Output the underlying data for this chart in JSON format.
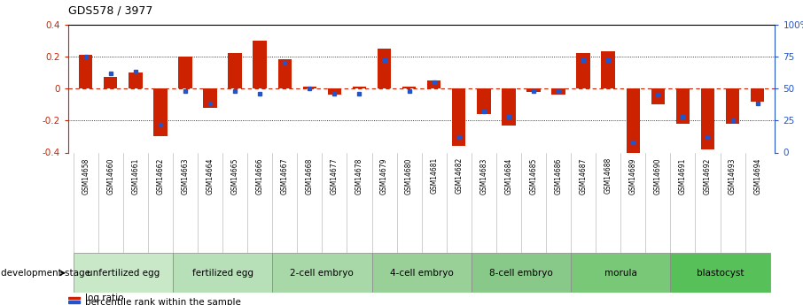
{
  "title": "GDS578 / 3977",
  "samples": [
    "GSM14658",
    "GSM14660",
    "GSM14661",
    "GSM14662",
    "GSM14663",
    "GSM14664",
    "GSM14665",
    "GSM14666",
    "GSM14667",
    "GSM14668",
    "GSM14677",
    "GSM14678",
    "GSM14679",
    "GSM14680",
    "GSM14681",
    "GSM14682",
    "GSM14683",
    "GSM14684",
    "GSM14685",
    "GSM14686",
    "GSM14687",
    "GSM14688",
    "GSM14689",
    "GSM14690",
    "GSM14691",
    "GSM14692",
    "GSM14693",
    "GSM14694"
  ],
  "log_ratio": [
    0.21,
    0.07,
    0.1,
    -0.3,
    0.2,
    -0.12,
    0.22,
    0.3,
    0.18,
    0.01,
    -0.04,
    0.01,
    0.25,
    0.01,
    0.05,
    -0.36,
    -0.16,
    -0.23,
    -0.02,
    -0.04,
    0.22,
    0.23,
    -0.4,
    -0.1,
    -0.22,
    -0.38,
    -0.22,
    -0.08
  ],
  "percentile_rank": [
    75,
    62,
    63,
    22,
    48,
    38,
    48,
    46,
    70,
    50,
    46,
    46,
    72,
    48,
    55,
    12,
    32,
    28,
    48,
    48,
    72,
    72,
    8,
    45,
    28,
    12,
    25,
    38
  ],
  "stage_groups": [
    {
      "label": "unfertilized egg",
      "start": 0,
      "end": 4
    },
    {
      "label": "fertilized egg",
      "start": 4,
      "end": 8
    },
    {
      "label": "2-cell embryo",
      "start": 8,
      "end": 12
    },
    {
      "label": "4-cell embryo",
      "start": 12,
      "end": 16
    },
    {
      "label": "8-cell embryo",
      "start": 16,
      "end": 20
    },
    {
      "label": "morula",
      "start": 20,
      "end": 24
    },
    {
      "label": "blastocyst",
      "start": 24,
      "end": 28
    }
  ],
  "stage_colors": [
    "#c8e8c8",
    "#b8e0b8",
    "#a8d8a8",
    "#98d098",
    "#88c888",
    "#78c878",
    "#58c058"
  ],
  "bar_color": "#cc2200",
  "marker_color": "#2255cc",
  "ylim": [
    -0.4,
    0.4
  ],
  "background_color": "#ffffff",
  "xtick_bg": "#c8c8c8",
  "stage_header_bg": "#a8a8a8"
}
